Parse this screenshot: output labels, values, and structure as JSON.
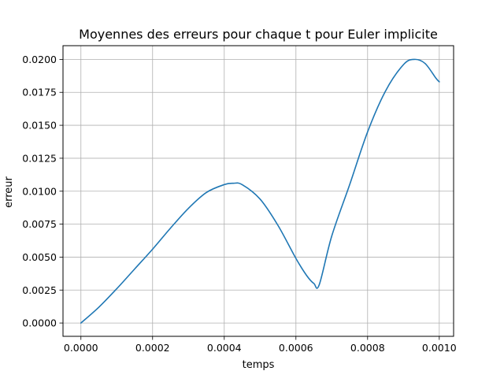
{
  "chart_data": {
    "type": "line",
    "title": "Moyennes des erreurs pour chaque t pour Euler implicite",
    "xlabel": "temps",
    "ylabel": "erreur",
    "xlim": [
      -5e-05,
      0.00104
    ],
    "ylim": [
      -0.00101,
      0.02104
    ],
    "grid": true,
    "x_ticks": [
      0.0,
      0.0002,
      0.0004,
      0.0006,
      0.0008,
      0.001
    ],
    "x_tick_labels": [
      "0.0000",
      "0.0002",
      "0.0004",
      "0.0006",
      "0.0008",
      "0.0010"
    ],
    "y_ticks": [
      0.0,
      0.0025,
      0.005,
      0.0075,
      0.01,
      0.0125,
      0.015,
      0.0175,
      0.02
    ],
    "y_tick_labels": [
      "0.0000",
      "0.0025",
      "0.0050",
      "0.0075",
      "0.0100",
      "0.0125",
      "0.0150",
      "0.0175",
      "0.0200"
    ],
    "series": [
      {
        "color": "#1f77b4",
        "x": [
          0.0,
          5e-05,
          0.0001,
          0.00015,
          0.0002,
          0.00025,
          0.0003,
          0.00035,
          0.0004,
          0.000425,
          0.00045,
          0.0005,
          0.00055,
          0.0006,
          0.00063,
          0.00065,
          0.000665,
          0.0007,
          0.00075,
          0.0008,
          0.00085,
          0.0009,
          0.00093,
          0.00096,
          0.00099,
          0.001
        ],
        "y": [
          0.0,
          0.0012,
          0.0026,
          0.0041,
          0.0056,
          0.0072,
          0.0087,
          0.0099,
          0.0105,
          0.0106,
          0.0105,
          0.0094,
          0.0074,
          0.0049,
          0.0036,
          0.003,
          0.0029,
          0.0066,
          0.0105,
          0.0145,
          0.0176,
          0.0196,
          0.02,
          0.0197,
          0.0186,
          0.0183
        ]
      }
    ]
  }
}
